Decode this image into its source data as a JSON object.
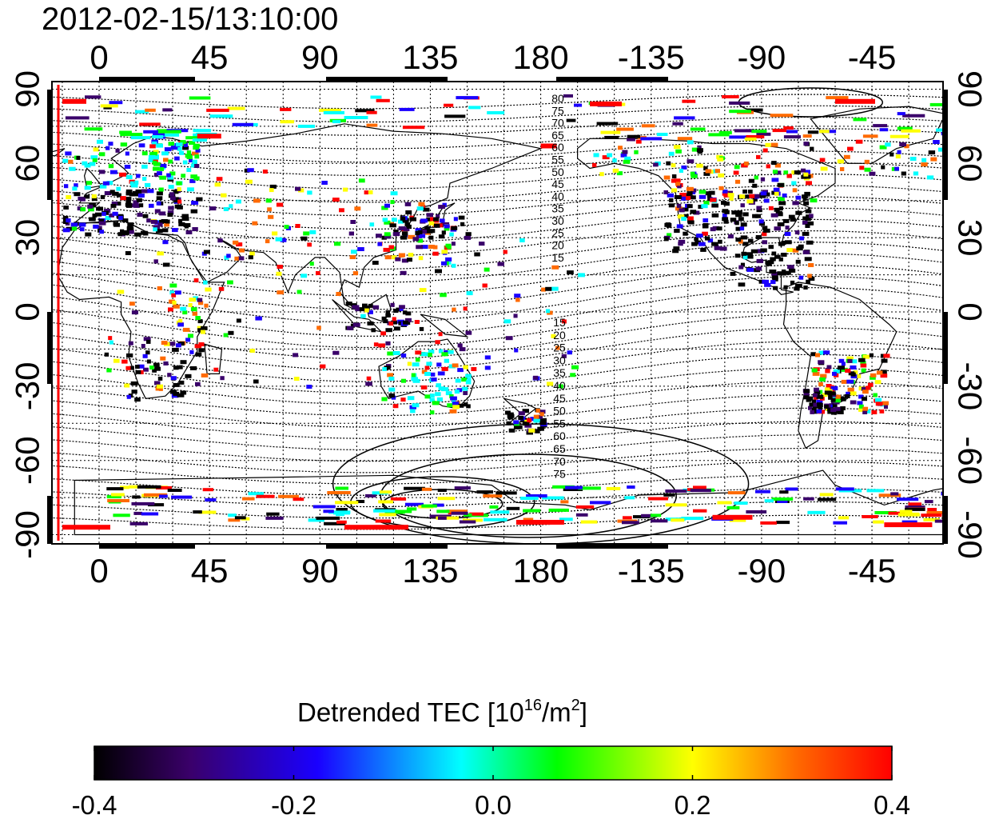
{
  "title": "2012-02-15/13:10:00",
  "map": {
    "lon_ticks_top": [
      "0",
      "45",
      "90",
      "135",
      "180",
      "-135",
      "-90",
      "-45"
    ],
    "lon_ticks_bottom": [
      "0",
      "45",
      "90",
      "135",
      "180",
      "-135",
      "-90",
      "-45"
    ],
    "lat_ticks_left": [
      "90",
      "60",
      "30",
      "0",
      "-30",
      "-60",
      "-90"
    ],
    "lat_ticks_right": [
      "90",
      "60",
      "30",
      "0",
      "-30",
      "-60",
      "-90"
    ],
    "geomag_lat_labels_north": [
      "80",
      "75",
      "70",
      "65",
      "60",
      "55",
      "50",
      "45",
      "40",
      "35",
      "30",
      "25",
      "20",
      "15"
    ],
    "geomag_lat_labels_south": [
      "15",
      "20",
      "25",
      "30",
      "35",
      "40",
      "45",
      "50",
      "55",
      "60",
      "65",
      "70",
      "75"
    ],
    "terminator_color": "#ff0000"
  },
  "colorbar": {
    "title_prefix": "Detrended TEC  [10",
    "title_exp1": "16",
    "title_mid": "/m",
    "title_exp2": "2",
    "title_suffix": "]",
    "tick_labels": [
      "-0.4",
      "-0.2",
      "0.0",
      "0.2",
      "0.4"
    ],
    "range": [
      -0.4,
      0.4
    ],
    "colormap": [
      "#000000",
      "#3a006a",
      "#1a00ff",
      "#00ffff",
      "#00ff00",
      "#ffff00",
      "#ff6a00",
      "#ff0000"
    ]
  }
}
